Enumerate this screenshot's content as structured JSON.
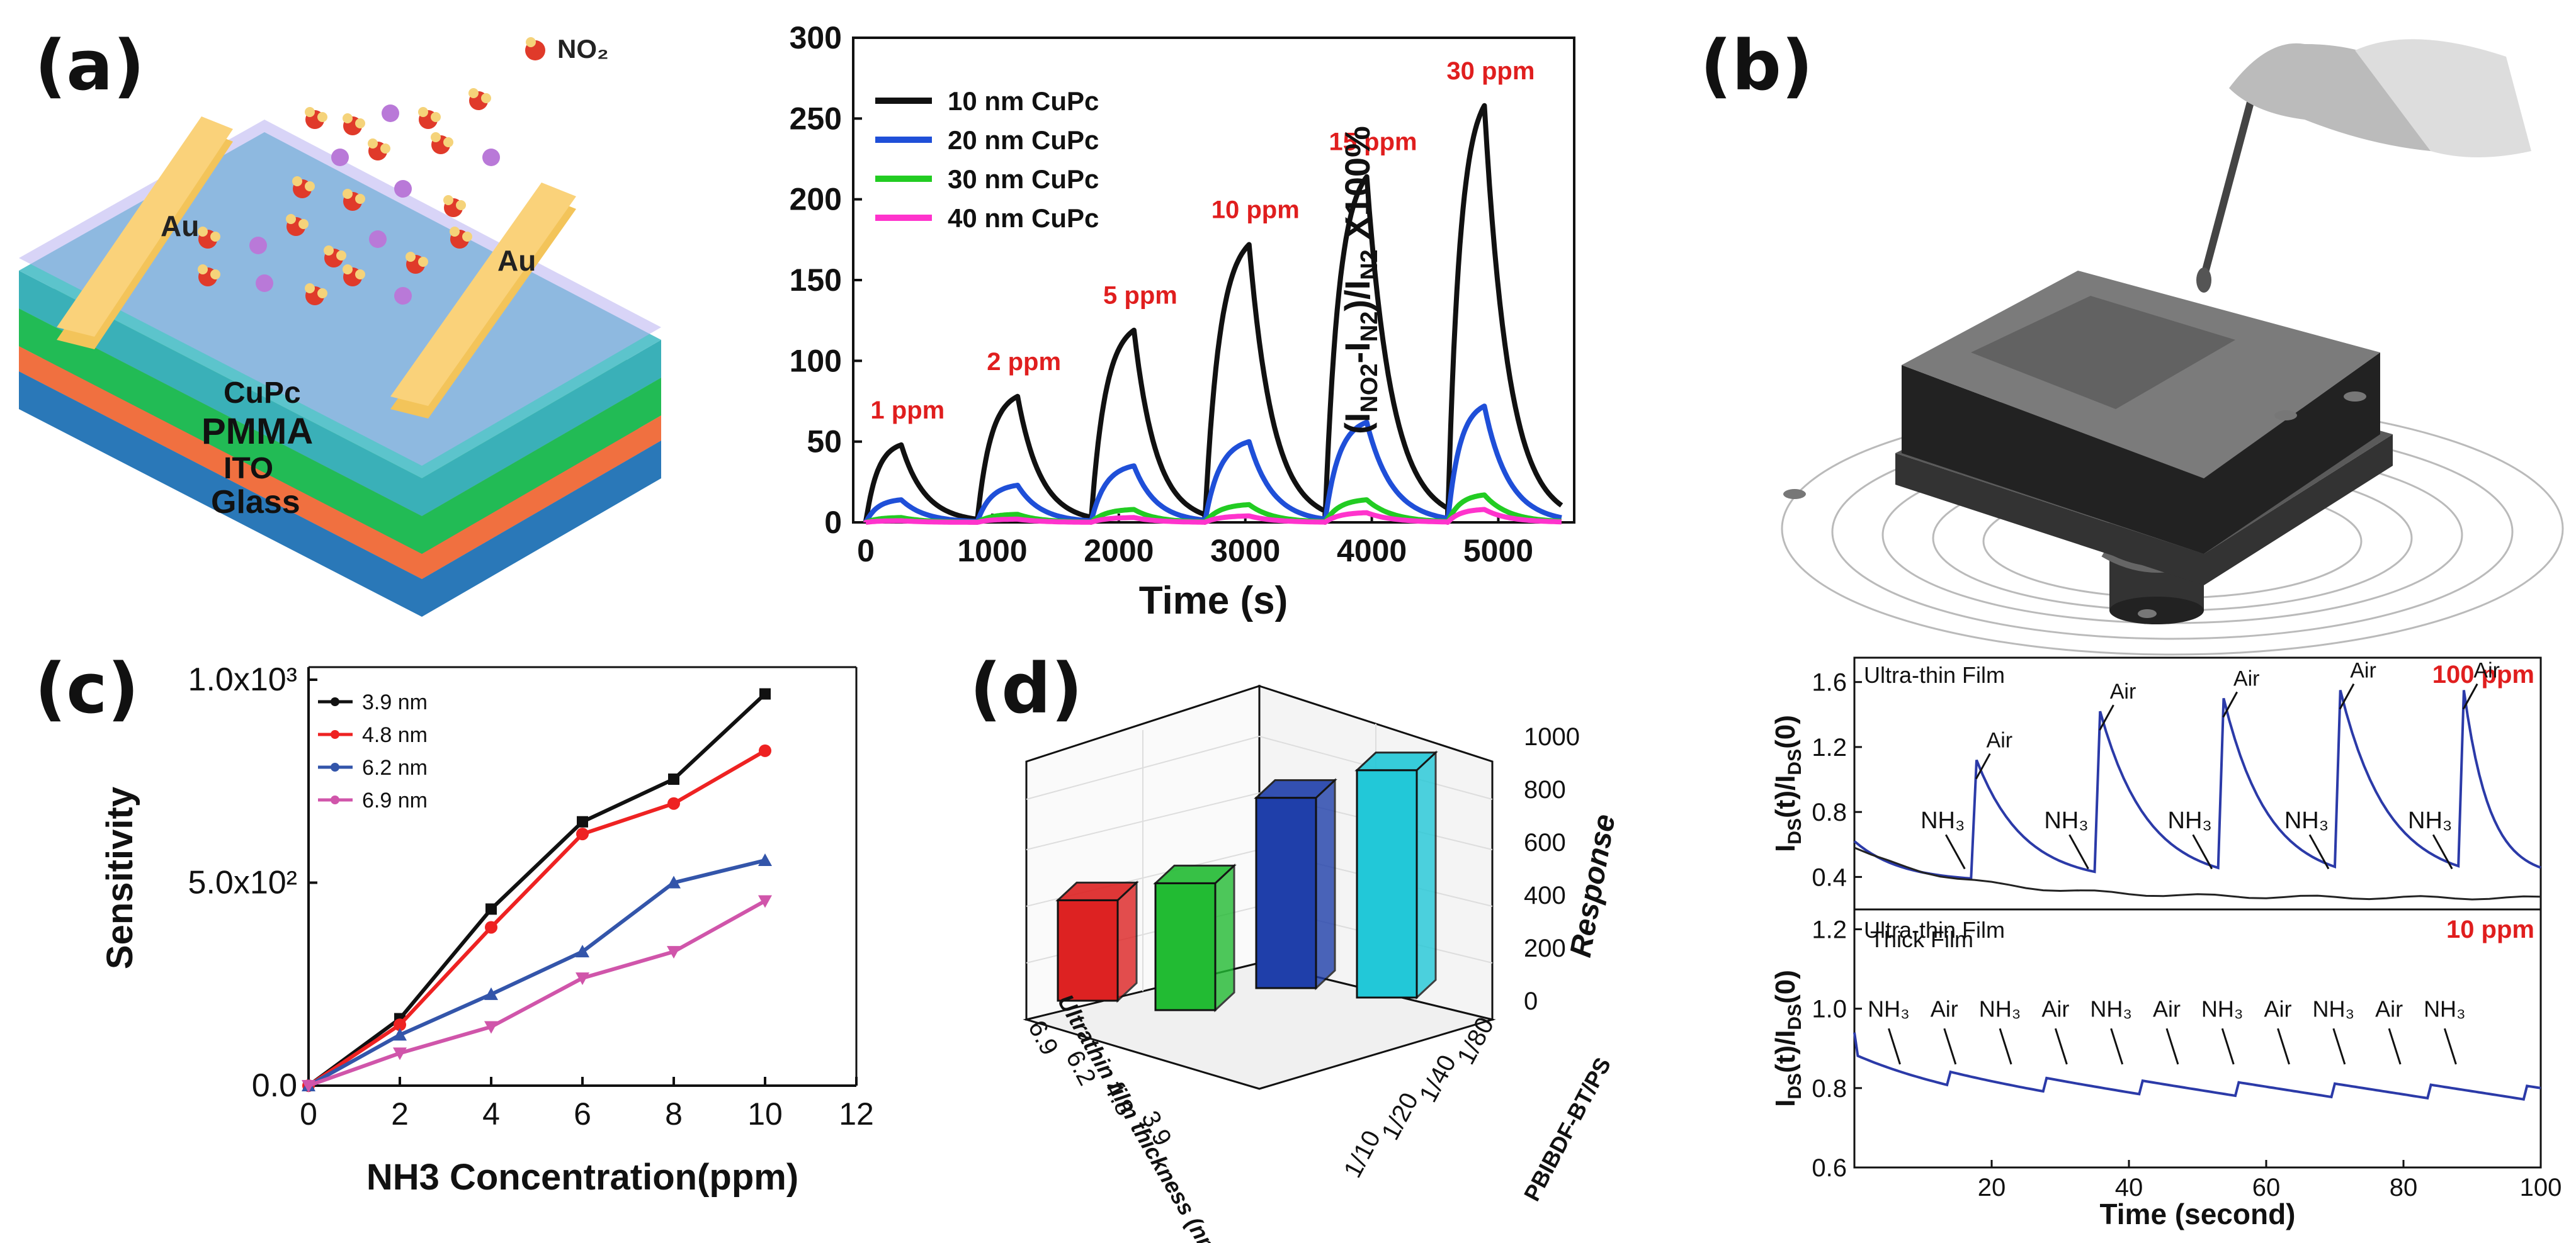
{
  "panel_labels": [
    "(a)",
    "(b)",
    "(c)",
    "(d)"
  ],
  "panel_a": {
    "device": {
      "layers": [
        "CuPc",
        "PMMA",
        "ITO",
        "Glass"
      ],
      "electrodes": [
        "Au",
        "Au"
      ],
      "gas_legend": "NO₂"
    },
    "chart_data": {
      "type": "line",
      "xlabel": "Time (s)",
      "ylabel": "(I_NO2-I_N2)/I_N2 X100%",
      "xlim": [
        -100,
        5600
      ],
      "ylim": [
        0,
        300
      ],
      "xticks": [
        0,
        1000,
        2000,
        3000,
        4000,
        5000
      ],
      "yticks": [
        0,
        50,
        100,
        150,
        200,
        250,
        300
      ],
      "cycles": [
        {
          "start": 0,
          "end": 280,
          "label": "1 ppm"
        },
        {
          "start": 880,
          "end": 1200,
          "label": "2 ppm"
        },
        {
          "start": 1780,
          "end": 2120,
          "label": "5 ppm"
        },
        {
          "start": 2680,
          "end": 3030,
          "label": "10 ppm"
        },
        {
          "start": 3630,
          "end": 3960,
          "label": "15 ppm"
        },
        {
          "start": 4600,
          "end": 4890,
          "label": "30 ppm"
        }
      ],
      "series": [
        {
          "name": "10 nm CuPc",
          "color": "#111111",
          "peaks": [
            48,
            78,
            119,
            172,
            214,
            258
          ]
        },
        {
          "name": "20 nm CuPc",
          "color": "#1f4fd8",
          "peaks": [
            14,
            23,
            35,
            50,
            62,
            72
          ]
        },
        {
          "name": "30 nm CuPc",
          "color": "#22cc22",
          "peaks": [
            3,
            5,
            8,
            11,
            14,
            17
          ]
        },
        {
          "name": "40 nm CuPc",
          "color": "#ff33cc",
          "peaks": [
            1,
            2,
            3,
            4,
            6,
            8
          ]
        }
      ]
    }
  },
  "panel_c": {
    "chart_data": {
      "type": "line",
      "xlabel": "NH3 Concentration(ppm)",
      "ylabel": "Sensitivity",
      "xlim": [
        0,
        12
      ],
      "ylim": [
        0,
        1000
      ],
      "xticks": [
        0,
        2,
        4,
        6,
        8,
        10,
        12
      ],
      "ytick_labels": [
        "0.0",
        "5.0x10²",
        "1.0x10³"
      ],
      "ytick_values": [
        0,
        500,
        1000
      ],
      "x": [
        0,
        2,
        4,
        6,
        8,
        10
      ],
      "series": [
        {
          "name": "3.9 nm",
          "color": "#111111",
          "marker": "square",
          "values": [
            0,
            165,
            435,
            650,
            755,
            965
          ]
        },
        {
          "name": "4.8 nm",
          "color": "#ee2222",
          "marker": "circle",
          "values": [
            0,
            150,
            390,
            620,
            695,
            825
          ]
        },
        {
          "name": "6.2 nm",
          "color": "#3355aa",
          "marker": "triangle",
          "values": [
            0,
            125,
            225,
            330,
            500,
            555
          ]
        },
        {
          "name": "6.9 nm",
          "color": "#d055aa",
          "marker": "tri-down",
          "values": [
            0,
            80,
            145,
            265,
            330,
            455
          ]
        }
      ]
    }
  },
  "panel_d": {
    "chart_data": {
      "type": "bar3d",
      "zlabel": "Response",
      "xlabel": "Ultrathin film thickness (nm)",
      "ylabel": "PBIBDF-BT/PS",
      "thickness_ticks": [
        "6.9",
        "6.2",
        "4.8",
        "3.9"
      ],
      "ratio_ticks": [
        "1/80",
        "1/40",
        "1/20",
        "1/10"
      ],
      "z_ticks": [
        0,
        200,
        400,
        600,
        800,
        1000
      ],
      "bars": [
        {
          "thickness": "6.9",
          "ratio": "1/80",
          "value": 380,
          "color": "#dd2222"
        },
        {
          "thickness": "6.2",
          "ratio": "1/40",
          "value": 480,
          "color": "#22bb33"
        },
        {
          "thickness": "4.8",
          "ratio": "1/20",
          "value": 720,
          "color": "#1f3faa"
        },
        {
          "thickness": "3.9",
          "ratio": "1/10",
          "value": 860,
          "color": "#22c8d8"
        }
      ]
    }
  },
  "panel_b_top": {
    "chart_data": {
      "type": "line",
      "xlabel": "",
      "ylabel": "I_DS(t)/I_DS(0)",
      "xlim": [
        0,
        100
      ],
      "ylim": [
        0.2,
        1.75
      ],
      "yticks": [
        "0.4",
        "0.8",
        "1.2",
        "1.6"
      ],
      "corner_label": "100 ppm",
      "film_labels": [
        "Ultra-thin Film",
        "Thick Film"
      ],
      "gas_labels": {
        "nh3": "NH₃",
        "air": "Air"
      },
      "pulses": [
        {
          "on": 17,
          "peak": 1.12
        },
        {
          "on": 35,
          "peak": 1.42
        },
        {
          "on": 53,
          "peak": 1.5
        },
        {
          "on": 70,
          "peak": 1.55
        },
        {
          "on": 88,
          "peak": 1.55
        }
      ]
    }
  },
  "panel_b_bottom": {
    "chart_data": {
      "type": "line",
      "xlabel": "Time (second)",
      "ylabel": "I_DS(t)/I_DS(0)",
      "xlim": [
        0,
        100
      ],
      "ylim": [
        0.6,
        1.25
      ],
      "xticks": [
        "20",
        "40",
        "60",
        "80",
        "100"
      ],
      "yticks": [
        "0.6",
        "0.8",
        "1.0",
        "1.2"
      ],
      "corner_label": "10 ppm",
      "film_label": "Ultra-thin Film",
      "gas_sequence": [
        "NH₃",
        "Air",
        "NH₃",
        "Air",
        "NH₃",
        "Air",
        "NH₃",
        "Air",
        "NH₃",
        "Air",
        "NH₃"
      ]
    }
  }
}
